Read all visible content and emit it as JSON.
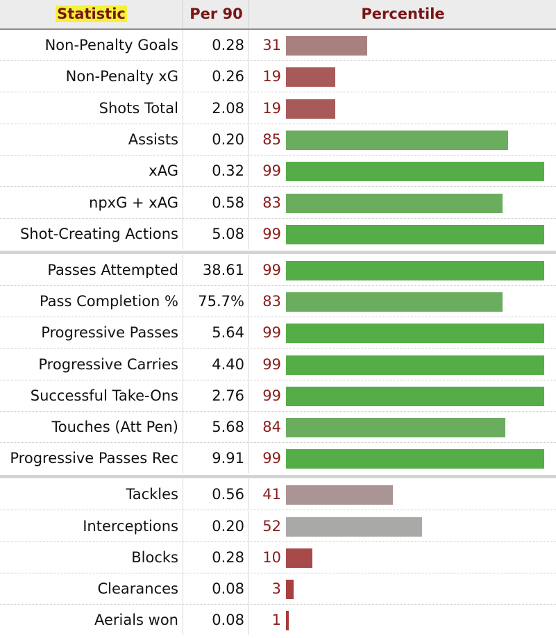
{
  "header": {
    "statistic": "Statistic",
    "per90": "Per 90",
    "percentile": "Percentile"
  },
  "groups": [
    [
      {
        "name": "Non-Penalty Goals",
        "per90": "0.28",
        "percentile": 31,
        "color": "#a88080"
      },
      {
        "name": "Non-Penalty xG",
        "per90": "0.26",
        "percentile": 19,
        "color": "#a85a5a"
      },
      {
        "name": "Shots Total",
        "per90": "2.08",
        "percentile": 19,
        "color": "#a85a5a"
      },
      {
        "name": "Assists",
        "per90": "0.20",
        "percentile": 85,
        "color": "#6aad5e"
      },
      {
        "name": "xAG",
        "per90": "0.32",
        "percentile": 99,
        "color": "#55ad47"
      },
      {
        "name": "npxG + xAG",
        "per90": "0.58",
        "percentile": 83,
        "color": "#6aad5e"
      },
      {
        "name": "Shot-Creating Actions",
        "per90": "5.08",
        "percentile": 99,
        "color": "#55ad47"
      }
    ],
    [
      {
        "name": "Passes Attempted",
        "per90": "38.61",
        "percentile": 99,
        "color": "#55ad47"
      },
      {
        "name": "Pass Completion %",
        "per90": "75.7%",
        "percentile": 83,
        "color": "#6aad5e"
      },
      {
        "name": "Progressive Passes",
        "per90": "5.64",
        "percentile": 99,
        "color": "#55ad47"
      },
      {
        "name": "Progressive Carries",
        "per90": "4.40",
        "percentile": 99,
        "color": "#55ad47"
      },
      {
        "name": "Successful Take-Ons",
        "per90": "2.76",
        "percentile": 99,
        "color": "#55ad47"
      },
      {
        "name": "Touches (Att Pen)",
        "per90": "5.68",
        "percentile": 84,
        "color": "#6aad5e"
      },
      {
        "name": "Progressive Passes Rec",
        "per90": "9.91",
        "percentile": 99,
        "color": "#55ad47"
      }
    ],
    [
      {
        "name": "Tackles",
        "per90": "0.56",
        "percentile": 41,
        "color": "#aa9494"
      },
      {
        "name": "Interceptions",
        "per90": "0.20",
        "percentile": 52,
        "color": "#a9aaa8"
      },
      {
        "name": "Blocks",
        "per90": "0.28",
        "percentile": 10,
        "color": "#a84a4a"
      },
      {
        "name": "Clearances",
        "per90": "0.08",
        "percentile": 3,
        "color": "#a84040"
      },
      {
        "name": "Aerials won",
        "per90": "0.08",
        "percentile": 1,
        "color": "#a83a3a"
      }
    ]
  ]
}
